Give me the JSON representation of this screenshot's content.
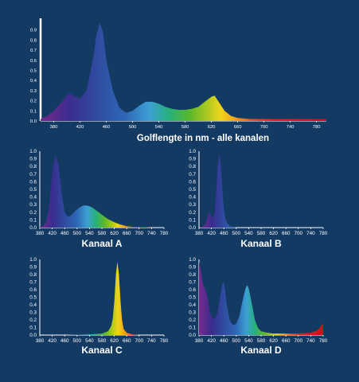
{
  "colors": {
    "background": "#133a63",
    "axis": "#ffffff",
    "text": "#ffffff"
  },
  "chart_data": [
    {
      "type": "area",
      "xlabel": "Golflengte in nm - alle kanalen",
      "ylabel": "",
      "xlim": [
        360,
        795
      ],
      "ylim": [
        0,
        1.0
      ],
      "x_ticks": [
        380,
        420,
        460,
        500,
        540,
        580,
        620,
        660,
        700,
        740,
        780
      ],
      "y_ticks": [
        0.0,
        0.1,
        0.2,
        0.3,
        0.4,
        0.5,
        0.6,
        0.7,
        0.8,
        0.9
      ],
      "y_tick_labels": [
        "0.0",
        "0.1",
        "0.2",
        "0.3",
        "0.4",
        "0.5",
        "0.6",
        "0.7",
        "0.8",
        "0.9"
      ],
      "grid": false,
      "x": [
        360,
        370,
        380,
        390,
        400,
        405,
        410,
        420,
        430,
        440,
        445,
        450,
        455,
        460,
        470,
        480,
        490,
        500,
        510,
        520,
        530,
        540,
        550,
        560,
        570,
        580,
        590,
        600,
        610,
        620,
        625,
        630,
        640,
        650,
        660,
        680,
        700,
        720,
        740,
        760,
        780,
        795
      ],
      "y": [
        0.02,
        0.05,
        0.1,
        0.17,
        0.25,
        0.28,
        0.25,
        0.22,
        0.3,
        0.62,
        0.85,
        0.97,
        0.88,
        0.6,
        0.3,
        0.13,
        0.08,
        0.1,
        0.15,
        0.19,
        0.19,
        0.17,
        0.14,
        0.12,
        0.11,
        0.11,
        0.12,
        0.14,
        0.19,
        0.24,
        0.25,
        0.2,
        0.1,
        0.05,
        0.03,
        0.02,
        0.02,
        0.02,
        0.02,
        0.02,
        0.02,
        0.02
      ]
    },
    {
      "type": "area",
      "xlabel": "Kanaal A",
      "ylabel": "",
      "xlim": [
        380,
        780
      ],
      "ylim": [
        0,
        1.0
      ],
      "x_ticks": [
        380,
        420,
        460,
        500,
        540,
        580,
        620,
        660,
        700,
        740,
        780
      ],
      "y_ticks": [
        0.0,
        0.1,
        0.2,
        0.3,
        0.4,
        0.5,
        0.6,
        0.7,
        0.8,
        0.9,
        1.0
      ],
      "y_tick_labels": [
        "0.0",
        "0.1",
        "0.2",
        "0.3",
        "0.4",
        "0.5",
        "0.6",
        "0.7",
        "0.8",
        "0.9",
        "1.0"
      ],
      "grid": false,
      "x": [
        380,
        390,
        400,
        410,
        420,
        430,
        440,
        450,
        460,
        470,
        480,
        490,
        500,
        510,
        520,
        530,
        540,
        550,
        560,
        570,
        580,
        590,
        600,
        610,
        620,
        640,
        660,
        680,
        700,
        740,
        780
      ],
      "y": [
        0.01,
        0.02,
        0.06,
        0.25,
        0.7,
        0.95,
        0.82,
        0.45,
        0.2,
        0.14,
        0.16,
        0.2,
        0.24,
        0.27,
        0.29,
        0.29,
        0.28,
        0.26,
        0.23,
        0.2,
        0.17,
        0.14,
        0.11,
        0.09,
        0.07,
        0.04,
        0.02,
        0.01,
        0.01,
        0.0,
        0.0
      ]
    },
    {
      "type": "area",
      "xlabel": "Kanaal B",
      "ylabel": "",
      "xlim": [
        380,
        780
      ],
      "ylim": [
        0,
        1.0
      ],
      "x_ticks": [
        380,
        420,
        460,
        500,
        540,
        580,
        620,
        660,
        700,
        740,
        780
      ],
      "y_ticks": [
        0.0,
        0.1,
        0.2,
        0.3,
        0.4,
        0.5,
        0.6,
        0.7,
        0.8,
        0.9,
        1.0
      ],
      "y_tick_labels": [
        "0.0",
        "0.1",
        "0.2",
        "0.3",
        "0.4",
        "0.5",
        "0.6",
        "0.7",
        "0.8",
        "0.9",
        "1.0"
      ],
      "grid": false,
      "x": [
        380,
        390,
        400,
        405,
        410,
        415,
        420,
        425,
        430,
        435,
        440,
        445,
        450,
        455,
        460,
        465,
        470,
        480,
        490,
        500,
        520,
        560,
        600,
        700,
        780
      ],
      "y": [
        0.0,
        0.01,
        0.04,
        0.1,
        0.18,
        0.2,
        0.15,
        0.12,
        0.18,
        0.45,
        0.8,
        0.97,
        0.82,
        0.5,
        0.25,
        0.12,
        0.06,
        0.02,
        0.01,
        0.0,
        0.0,
        0.0,
        0.0,
        0.0,
        0.0
      ]
    },
    {
      "type": "area",
      "xlabel": "Kanaal C",
      "ylabel": "",
      "xlim": [
        380,
        780
      ],
      "ylim": [
        0,
        1.0
      ],
      "x_ticks": [
        380,
        420,
        460,
        500,
        540,
        580,
        620,
        660,
        700,
        740,
        780
      ],
      "y_ticks": [
        0.0,
        0.1,
        0.2,
        0.3,
        0.4,
        0.5,
        0.6,
        0.7,
        0.8,
        0.9,
        1.0
      ],
      "y_tick_labels": [
        "0.0",
        "0.1",
        "0.2",
        "0.3",
        "0.4",
        "0.5",
        "0.6",
        "0.7",
        "0.8",
        "0.9",
        "1.0"
      ],
      "grid": false,
      "x": [
        380,
        460,
        540,
        580,
        600,
        610,
        615,
        620,
        625,
        630,
        635,
        640,
        645,
        650,
        660,
        680,
        700,
        780
      ],
      "y": [
        0.0,
        0.0,
        0.01,
        0.02,
        0.05,
        0.12,
        0.22,
        0.45,
        0.8,
        0.97,
        0.8,
        0.45,
        0.2,
        0.08,
        0.03,
        0.01,
        0.0,
        0.0
      ]
    },
    {
      "type": "area",
      "xlabel": "Kanaal D",
      "ylabel": "",
      "xlim": [
        380,
        780
      ],
      "ylim": [
        0,
        1.0
      ],
      "x_ticks": [
        380,
        420,
        460,
        500,
        540,
        580,
        620,
        660,
        700,
        740,
        780
      ],
      "y_ticks": [
        0.0,
        0.1,
        0.2,
        0.3,
        0.4,
        0.5,
        0.6,
        0.7,
        0.8,
        0.9,
        1.0
      ],
      "y_tick_labels": [
        "0.0",
        "0.1",
        "0.2",
        "0.3",
        "0.4",
        "0.5",
        "0.6",
        "0.7",
        "0.8",
        "0.9",
        "1.0"
      ],
      "grid": false,
      "x": [
        380,
        385,
        390,
        395,
        400,
        405,
        410,
        415,
        420,
        430,
        440,
        450,
        455,
        460,
        465,
        470,
        480,
        490,
        500,
        510,
        520,
        530,
        535,
        540,
        550,
        560,
        570,
        580,
        600,
        620,
        660,
        700,
        740,
        760,
        770,
        775,
        780
      ],
      "y": [
        0.97,
        0.88,
        0.72,
        0.65,
        0.6,
        0.55,
        0.45,
        0.32,
        0.25,
        0.2,
        0.3,
        0.55,
        0.68,
        0.7,
        0.55,
        0.38,
        0.18,
        0.13,
        0.15,
        0.25,
        0.45,
        0.62,
        0.66,
        0.62,
        0.42,
        0.2,
        0.09,
        0.05,
        0.03,
        0.02,
        0.02,
        0.02,
        0.03,
        0.06,
        0.1,
        0.14,
        0.15
      ]
    }
  ]
}
